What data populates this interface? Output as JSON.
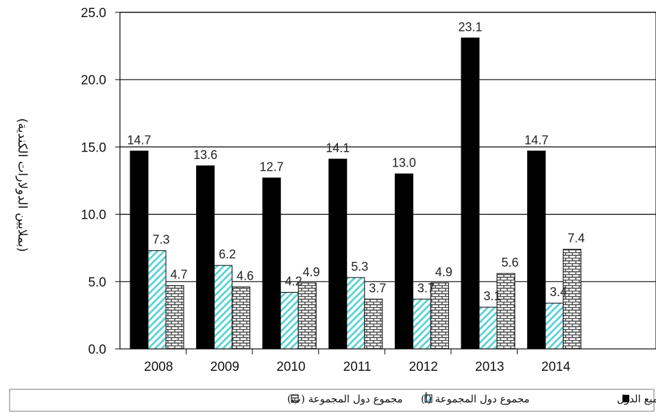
{
  "chart_data": {
    "type": "bar",
    "categories": [
      "2008",
      "2009",
      "2010",
      "2011",
      "2012",
      "2013",
      "2014"
    ],
    "series": [
      {
        "name": "مجموع المستحقات على جميع الدول",
        "values": [
          14.7,
          13.6,
          12.7,
          14.1,
          13.0,
          23.1,
          14.7
        ],
        "labels": [
          "14.7",
          "13.6",
          "12.7",
          "14.1",
          "13.0",
          "23.1",
          "14.7"
        ],
        "fill": "solid",
        "color": "#000000"
      },
      {
        "name": "مجموع دول المجموعة (أ)",
        "values": [
          7.3,
          6.2,
          4.2,
          5.3,
          3.7,
          3.1,
          3.4
        ],
        "labels": [
          "7.3",
          "6.2",
          "4.2",
          "5.3",
          "3.7",
          "3.1",
          "3.4"
        ],
        "fill": "diagonal",
        "color": "#5fd3d9"
      },
      {
        "name": "مجموع دول المجموعة (ب)",
        "values": [
          4.7,
          4.6,
          4.9,
          3.7,
          4.9,
          5.6,
          7.4
        ],
        "labels": [
          "4.7",
          "4.6",
          "4.9",
          "3.7",
          "4.9",
          "5.6",
          "7.4"
        ],
        "fill": "brick",
        "color": "#444444"
      }
    ],
    "ylim": [
      0,
      25
    ],
    "yticks": [
      "0.0",
      "5.0",
      "10.0",
      "15.0",
      "20.0",
      "25.0"
    ],
    "ylabel": "(بملايين الدولارات الكندية)",
    "xlabel": "",
    "title": "",
    "grid": true,
    "legend_position": "bottom",
    "legend": [
      "مجموع المستحقات على جميع الدول",
      "مجموع دول المجموعة (أ)",
      "مجموع دول المجموعة (ب)"
    ]
  }
}
